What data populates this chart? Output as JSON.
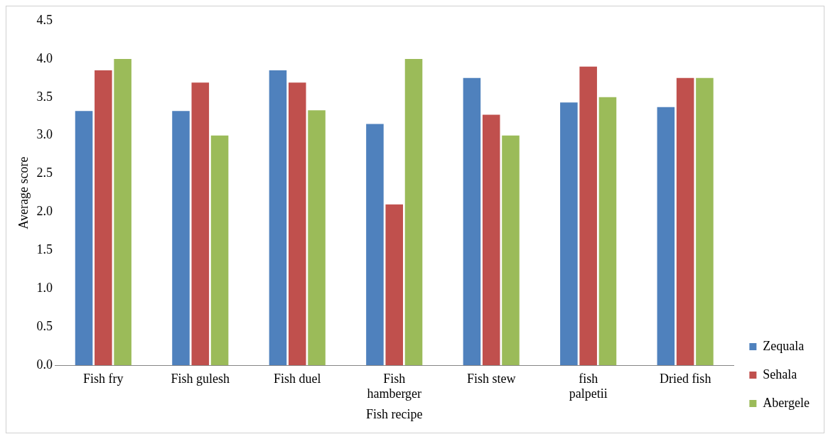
{
  "chart_data": {
    "type": "bar",
    "xlabel": "Fish recipe",
    "ylabel": "Average score",
    "categories": [
      "Fish fry",
      "Fish gulesh",
      "Fish duel",
      "Fish hamberger",
      "Fish stew",
      "fish palpetii",
      "Dried fish"
    ],
    "series": [
      {
        "name": "Zequala",
        "color": "#4f81bd",
        "values": [
          3.32,
          3.32,
          3.85,
          3.15,
          3.75,
          3.43,
          3.37
        ]
      },
      {
        "name": "Sehala",
        "color": "#c0504d",
        "values": [
          3.85,
          3.69,
          3.69,
          2.1,
          3.27,
          3.9,
          3.75
        ]
      },
      {
        "name": "Abergele",
        "color": "#9bbb59",
        "values": [
          4.0,
          3.0,
          3.33,
          4.0,
          3.0,
          3.5,
          3.75
        ]
      }
    ],
    "ylim": [
      0,
      4.5
    ],
    "yticks": [
      {
        "value": 0,
        "label": "0.0"
      },
      {
        "value": 0.5,
        "label": "0.5"
      },
      {
        "value": 1,
        "label": "1.0"
      },
      {
        "value": 1.5,
        "label": "1.5"
      },
      {
        "value": 2,
        "label": "2.0"
      },
      {
        "value": 2.5,
        "label": "2.5"
      },
      {
        "value": 3,
        "label": "3.0"
      },
      {
        "value": 3.5,
        "label": "3.5"
      },
      {
        "value": 4,
        "label": "4.0"
      },
      {
        "value": 4.5,
        "label": "4.5"
      }
    ],
    "grid": false,
    "legend": "bottom right"
  }
}
